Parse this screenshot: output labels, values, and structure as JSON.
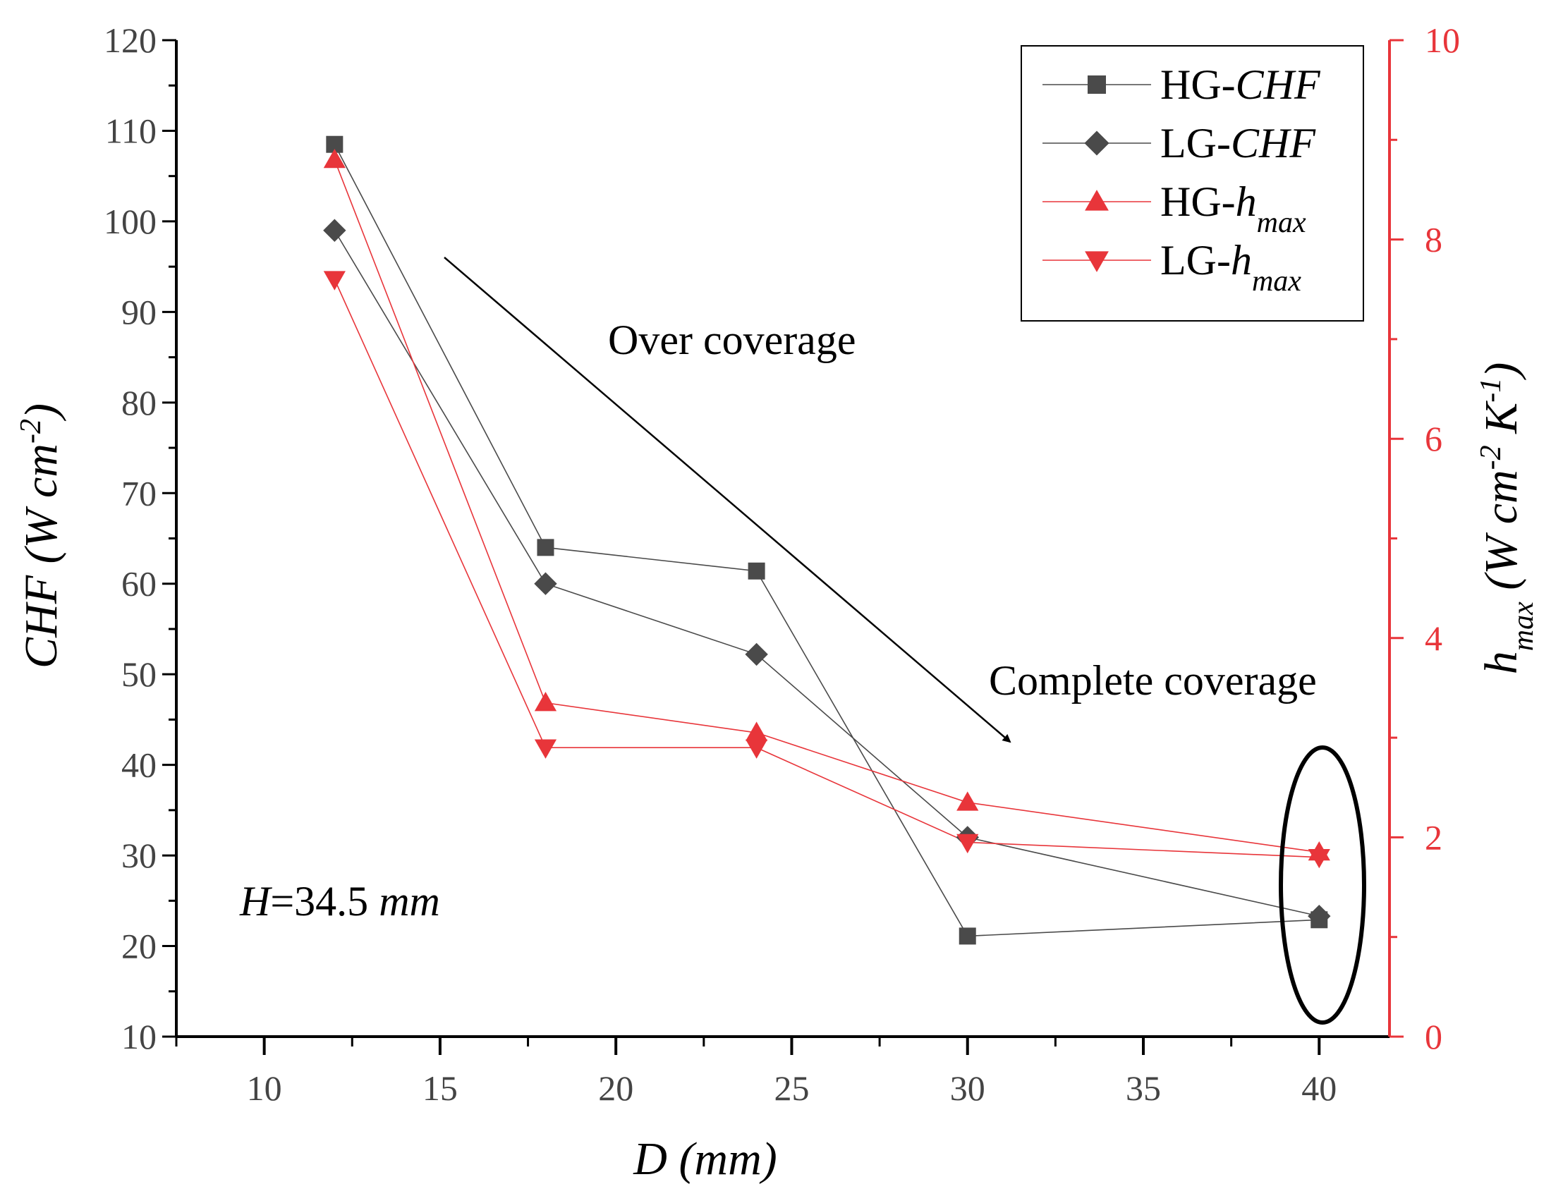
{
  "chart_data": {
    "type": "line",
    "x_axis": {
      "label_var": "D",
      "label_unit": " (mm)",
      "min": 7.5,
      "max": 42,
      "ticks": [
        10,
        15,
        20,
        25,
        30,
        35,
        40
      ]
    },
    "y_left": {
      "label_var": "CHF",
      "label_unit_base": " (W cm",
      "label_unit_sup": "-2",
      "label_unit_close": ")",
      "min": 10,
      "max": 120,
      "ticks": [
        10,
        20,
        30,
        40,
        50,
        60,
        70,
        80,
        90,
        100,
        110,
        120
      ]
    },
    "y_right": {
      "label_var": "h",
      "label_sub": "max",
      "label_unit_base": " (W cm",
      "label_unit_sup1": "-2",
      "label_unit_mid": " K",
      "label_unit_sup2": "-1",
      "label_unit_close": ")",
      "min": 0,
      "max": 10,
      "ticks": [
        0,
        2,
        4,
        6,
        8,
        10
      ],
      "color": "#e8353a"
    },
    "series": [
      {
        "name_base": "HG-",
        "name_var": "CHF",
        "name_sub": "",
        "axis": "left",
        "marker": "square",
        "color": "#4a4a4a",
        "x": [
          12,
          18,
          24,
          30,
          40
        ],
        "y": [
          108.5,
          64,
          61.4,
          21.1,
          22.9
        ]
      },
      {
        "name_base": "LG-",
        "name_var": "CHF",
        "name_sub": "",
        "axis": "left",
        "marker": "diamond",
        "color": "#4a4a4a",
        "x": [
          12,
          18,
          24,
          30,
          40
        ],
        "y": [
          99,
          60,
          52.2,
          32,
          23.3
        ]
      },
      {
        "name_base": "HG-",
        "name_var": "h",
        "name_sub": "max",
        "axis": "right",
        "marker": "triangle-up",
        "color": "#e8353a",
        "x": [
          12,
          18,
          24,
          30,
          40
        ],
        "y": [
          8.8,
          3.35,
          3.05,
          2.35,
          1.85
        ]
      },
      {
        "name_base": "LG-",
        "name_var": "h",
        "name_sub": "max",
        "axis": "right",
        "marker": "triangle-down",
        "color": "#e8353a",
        "x": [
          12,
          18,
          24,
          30,
          40
        ],
        "y": [
          7.6,
          2.9,
          2.9,
          1.95,
          1.8
        ]
      }
    ],
    "annotations": {
      "over": "Over coverage",
      "complete": "Complete coverage",
      "h_var": "H",
      "h_value": "=34.5 ",
      "h_unit": "mm"
    },
    "legend_position": "top-right"
  }
}
